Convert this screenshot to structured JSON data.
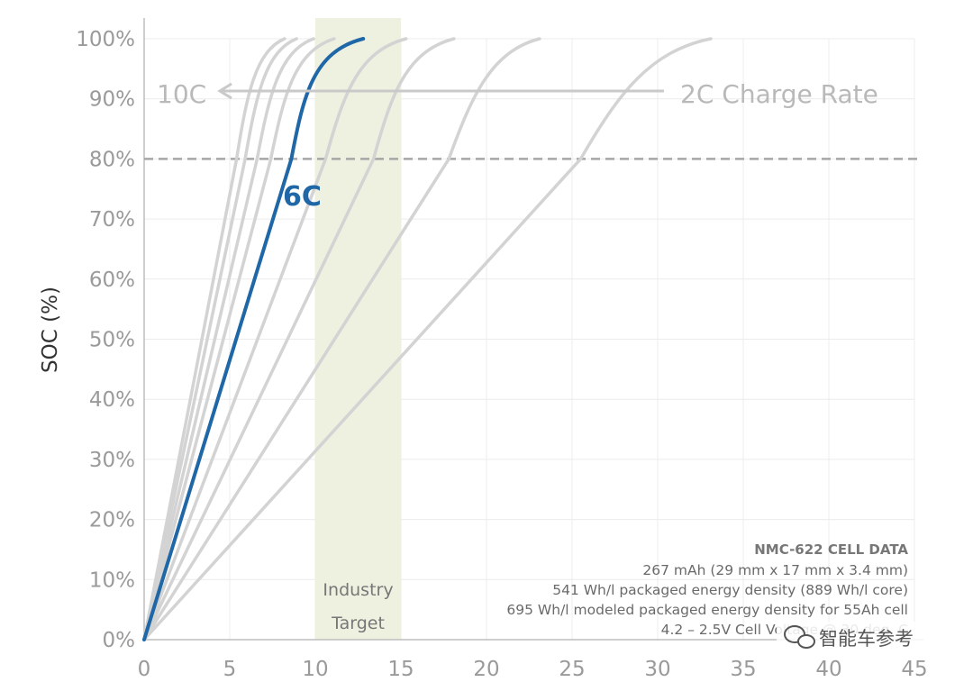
{
  "chart_data": {
    "type": "line",
    "title": "",
    "xlabel": "",
    "ylabel": "SOC (%)",
    "xlim": [
      0,
      45
    ],
    "ylim": [
      0,
      100
    ],
    "x_ticks": [
      "0",
      "5",
      "10",
      "15",
      "20",
      "25",
      "30",
      "35",
      "40",
      "45"
    ],
    "y_ticks": [
      "0%",
      "10%",
      "20%",
      "30%",
      "40%",
      "50%",
      "60%",
      "70%",
      "80%",
      "90%",
      "100%"
    ],
    "grid": true,
    "reference_line": {
      "y": 80,
      "style": "dashed"
    },
    "band": {
      "x": [
        10,
        15
      ],
      "color": "#eef1e0",
      "label_line1": "Industry",
      "label_line2": "Target"
    },
    "colors": {
      "highlight": "#1f67a6",
      "others": "#d3d3d3",
      "reference": "#a6a6a6"
    },
    "series": [
      {
        "name": "10C",
        "highlight": false,
        "points": [
          [
            0,
            0
          ],
          [
            5.4,
            80
          ],
          [
            6.5,
            92
          ],
          [
            8.2,
            100
          ]
        ]
      },
      {
        "highlight": false,
        "points": [
          [
            0,
            0
          ],
          [
            5.9,
            80
          ],
          [
            7.1,
            92
          ],
          [
            8.9,
            100
          ]
        ]
      },
      {
        "highlight": false,
        "points": [
          [
            0,
            0
          ],
          [
            6.6,
            80
          ],
          [
            7.9,
            92
          ],
          [
            9.9,
            100
          ]
        ]
      },
      {
        "highlight": false,
        "points": [
          [
            0,
            0
          ],
          [
            7.4,
            80
          ],
          [
            8.8,
            92
          ],
          [
            11.1,
            100
          ]
        ]
      },
      {
        "name": "6C",
        "highlight": true,
        "points": [
          [
            0,
            0
          ],
          [
            8.6,
            80
          ],
          [
            9.9,
            92
          ],
          [
            12.8,
            100
          ]
        ]
      },
      {
        "highlight": false,
        "points": [
          [
            0,
            0
          ],
          [
            10.6,
            80
          ],
          [
            12.5,
            92
          ],
          [
            15.3,
            100
          ]
        ]
      },
      {
        "highlight": false,
        "points": [
          [
            0,
            0
          ],
          [
            13.4,
            80
          ],
          [
            15.3,
            92
          ],
          [
            18.1,
            100
          ]
        ]
      },
      {
        "highlight": false,
        "points": [
          [
            0,
            0
          ],
          [
            17.8,
            80
          ],
          [
            20.3,
            92
          ],
          [
            23.1,
            100
          ]
        ]
      },
      {
        "name": "2C",
        "highlight": false,
        "points": [
          [
            0,
            0
          ],
          [
            25.5,
            80
          ],
          [
            29.5,
            92
          ],
          [
            33.1,
            100
          ]
        ]
      }
    ]
  },
  "labels": {
    "rate_fast": "10C",
    "rate_slow": "2C Charge Rate",
    "highlight": "6C"
  },
  "info_box": {
    "title": "NMC-622 CELL DATA",
    "lines": [
      "267 mAh (29 mm x 17 mm x 3.4 mm)",
      "541 Wh/l packaged energy density (889 Wh/l core)",
      "695 Wh/l modeled packaged energy density for 55Ah cell",
      "4.2 – 2.5V Cell Voltage @ 30 deg. C"
    ]
  },
  "watermark": {
    "text": "智能车参考",
    "icon": "wechat-icon"
  }
}
